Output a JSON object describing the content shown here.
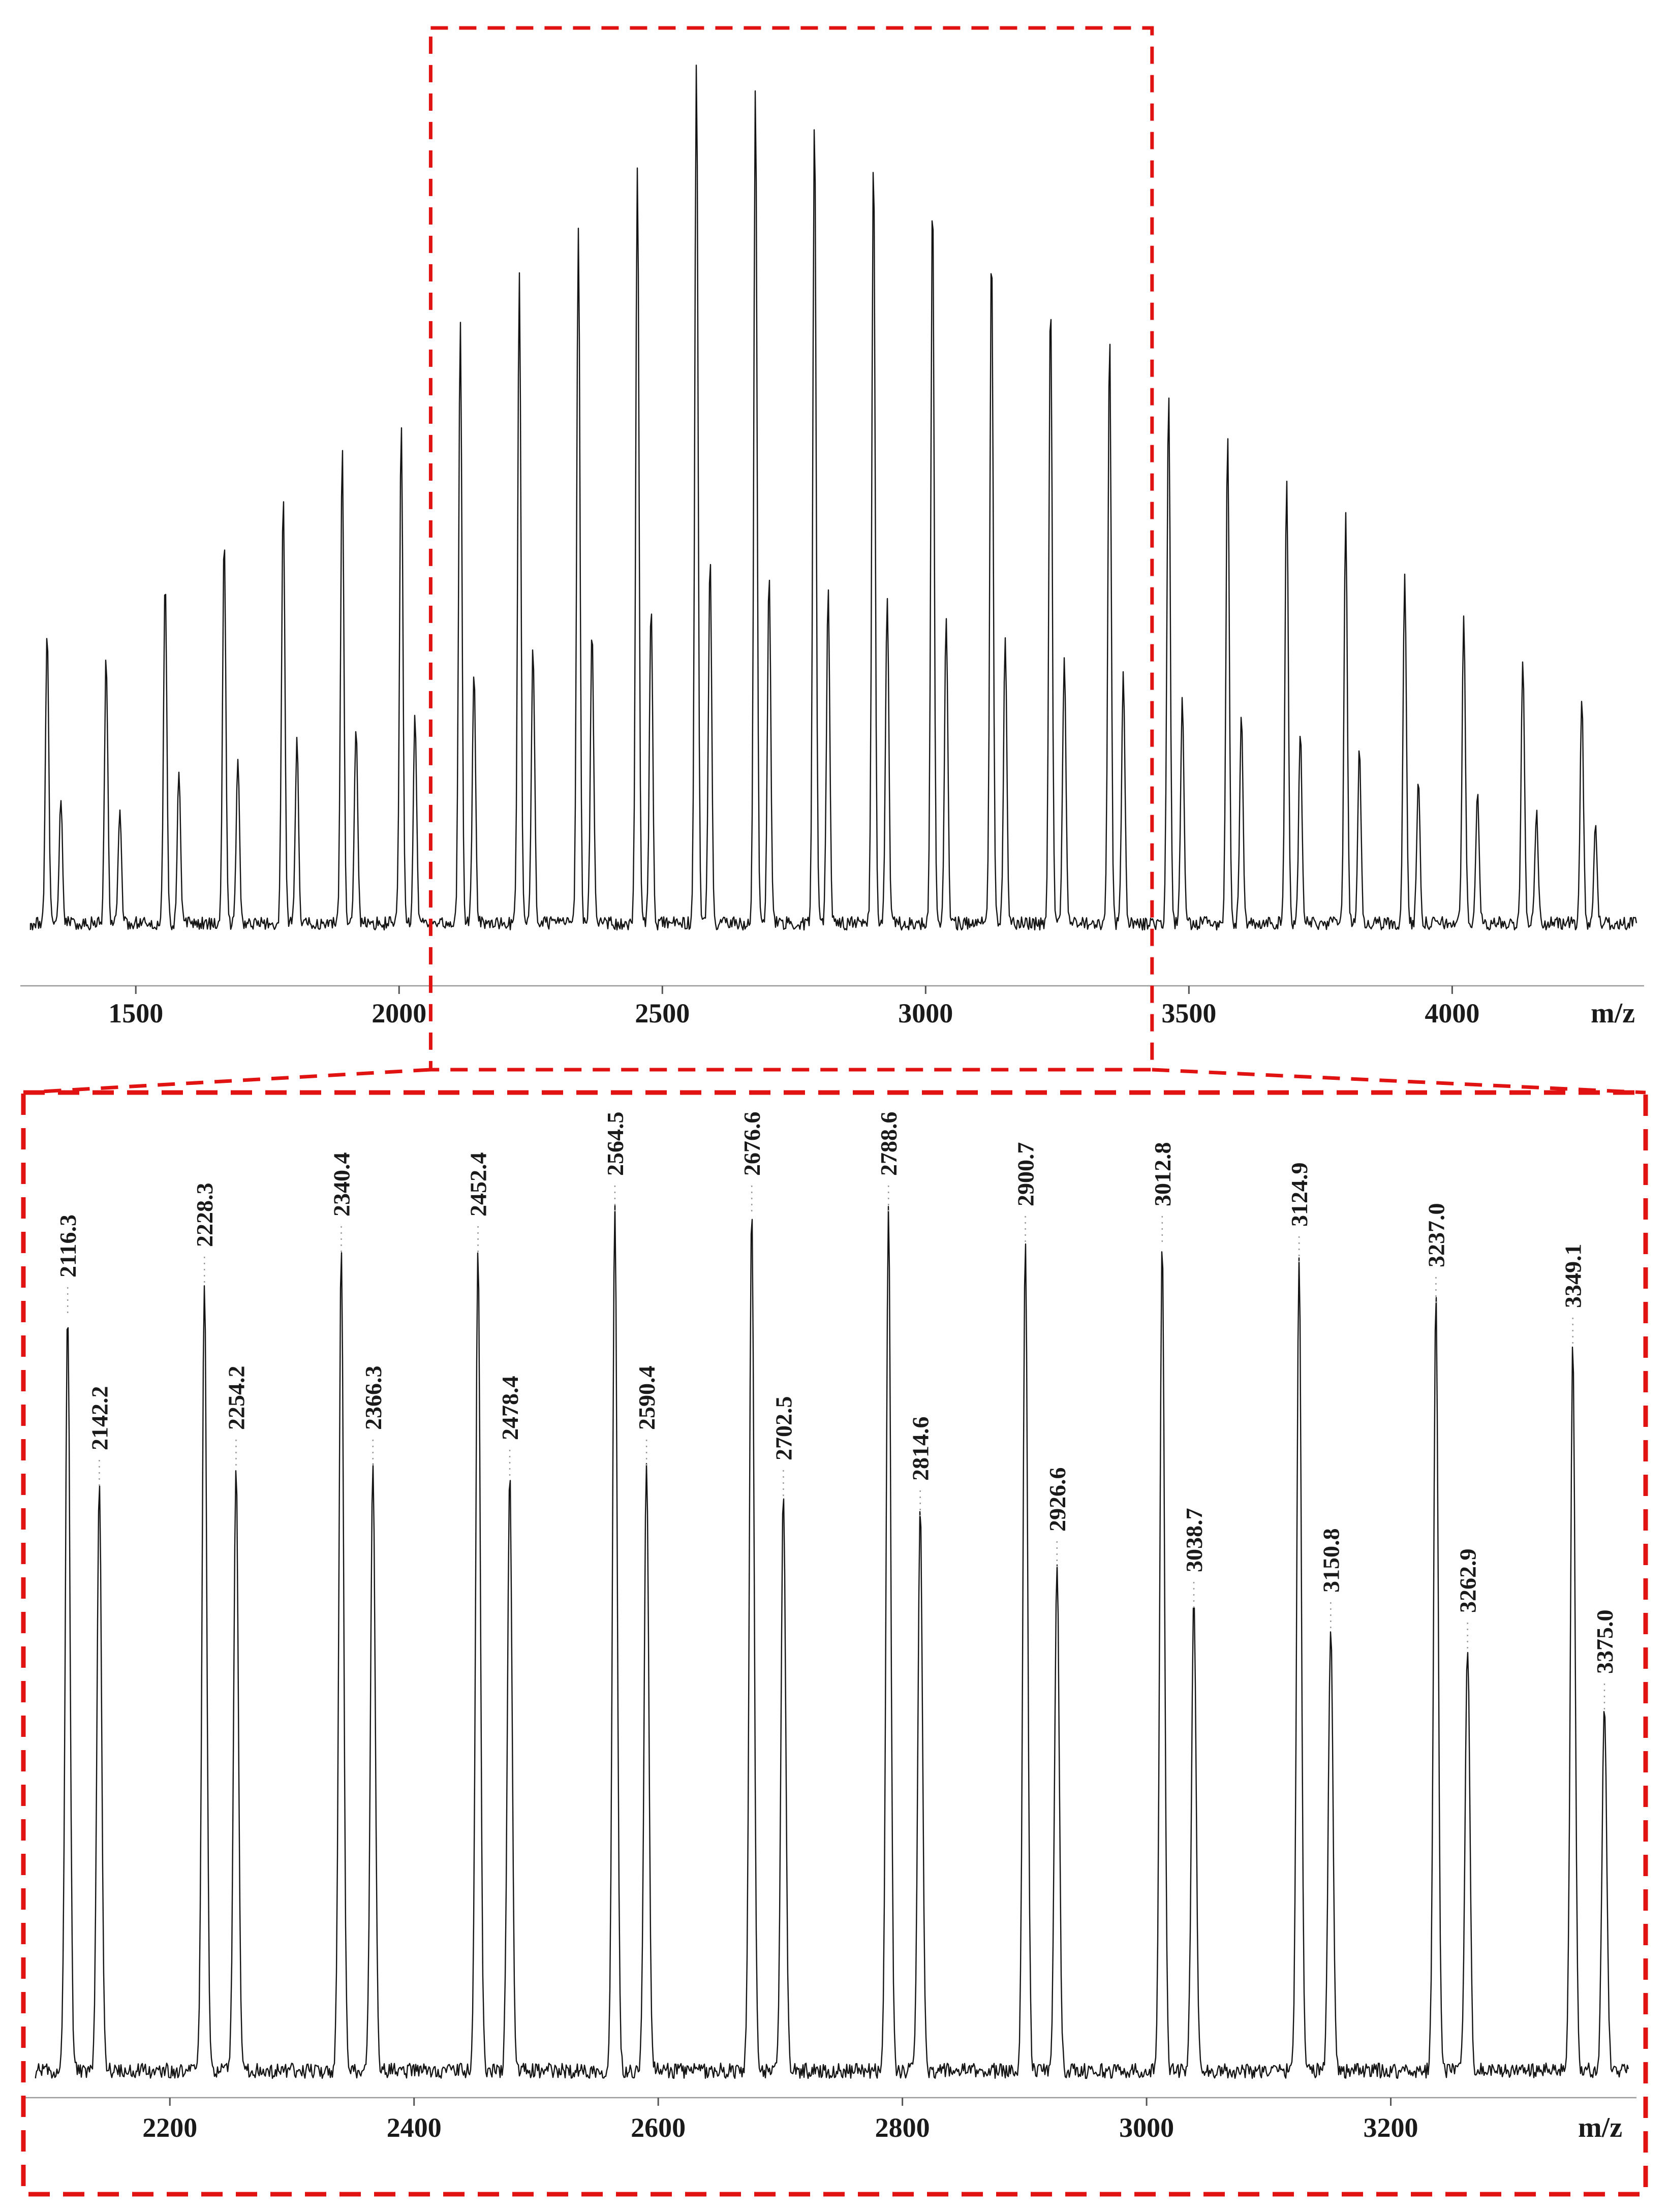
{
  "figure": {
    "background": "#ffffff",
    "accent_red": "#e01212",
    "trace_color": "#141414",
    "axis_color": "#999999"
  },
  "chart_data": [
    {
      "type": "line",
      "title": "Full-range mass spectrum (polymer distribution)",
      "xlabel": "m/z",
      "x_range": [
        1300,
        4350
      ],
      "x_ticks": [
        1500,
        2000,
        2500,
        3000,
        3500,
        4000
      ],
      "grid": false,
      "legend": "none",
      "zoom_box_range": [
        2060,
        3430
      ],
      "peaks": [
        {
          "mz": 1331.6,
          "i": 0.34
        },
        {
          "mz": 1357.6,
          "i": 0.14
        },
        {
          "mz": 1443.7,
          "i": 0.31
        },
        {
          "mz": 1469.7,
          "i": 0.13
        },
        {
          "mz": 1555.8,
          "i": 0.4
        },
        {
          "mz": 1581.8,
          "i": 0.17
        },
        {
          "mz": 1667.9,
          "i": 0.45
        },
        {
          "mz": 1693.9,
          "i": 0.19
        },
        {
          "mz": 1780.0,
          "i": 0.5
        },
        {
          "mz": 1806.0,
          "i": 0.21
        },
        {
          "mz": 1892.1,
          "i": 0.55
        },
        {
          "mz": 1918.1,
          "i": 0.23
        },
        {
          "mz": 2004.2,
          "i": 0.58
        },
        {
          "mz": 2030.2,
          "i": 0.24
        },
        {
          "mz": 2116.3,
          "i": 0.7
        },
        {
          "mz": 2142.3,
          "i": 0.29
        },
        {
          "mz": 2228.4,
          "i": 0.75
        },
        {
          "mz": 2254.4,
          "i": 0.32
        },
        {
          "mz": 2340.5,
          "i": 0.81
        },
        {
          "mz": 2366.5,
          "i": 0.34
        },
        {
          "mz": 2452.6,
          "i": 0.88
        },
        {
          "mz": 2478.6,
          "i": 0.37
        },
        {
          "mz": 2564.7,
          "i": 1.0
        },
        {
          "mz": 2590.7,
          "i": 0.42
        },
        {
          "mz": 2676.8,
          "i": 0.97
        },
        {
          "mz": 2702.8,
          "i": 0.41
        },
        {
          "mz": 2788.9,
          "i": 0.94
        },
        {
          "mz": 2814.9,
          "i": 0.39
        },
        {
          "mz": 2901.0,
          "i": 0.9
        },
        {
          "mz": 2927.0,
          "i": 0.38
        },
        {
          "mz": 3013.1,
          "i": 0.85
        },
        {
          "mz": 3039.1,
          "i": 0.36
        },
        {
          "mz": 3125.2,
          "i": 0.79
        },
        {
          "mz": 3151.2,
          "i": 0.33
        },
        {
          "mz": 3237.3,
          "i": 0.73
        },
        {
          "mz": 3263.3,
          "i": 0.31
        },
        {
          "mz": 3349.4,
          "i": 0.68
        },
        {
          "mz": 3375.4,
          "i": 0.29
        },
        {
          "mz": 3461.5,
          "i": 0.62
        },
        {
          "mz": 3487.5,
          "i": 0.26
        },
        {
          "mz": 3573.6,
          "i": 0.57
        },
        {
          "mz": 3599.6,
          "i": 0.24
        },
        {
          "mz": 3685.7,
          "i": 0.52
        },
        {
          "mz": 3711.7,
          "i": 0.22
        },
        {
          "mz": 3797.8,
          "i": 0.47
        },
        {
          "mz": 3823.8,
          "i": 0.2
        },
        {
          "mz": 3909.9,
          "i": 0.41
        },
        {
          "mz": 3935.9,
          "i": 0.17
        },
        {
          "mz": 4022.0,
          "i": 0.36
        },
        {
          "mz": 4048.0,
          "i": 0.15
        },
        {
          "mz": 4134.1,
          "i": 0.31
        },
        {
          "mz": 4160.1,
          "i": 0.13
        },
        {
          "mz": 4246.2,
          "i": 0.26
        },
        {
          "mz": 4272.2,
          "i": 0.11
        }
      ]
    },
    {
      "type": "line",
      "title": "Zoomed region of spectrum (labeled peaks)",
      "xlabel": "m/z",
      "x_range": [
        2090,
        3395
      ],
      "x_ticks": [
        2200,
        2400,
        2600,
        2800,
        3000,
        3200
      ],
      "grid": false,
      "legend": "none",
      "peaks": [
        {
          "mz": 2116.3,
          "i": 0.75,
          "label": "2116.3"
        },
        {
          "mz": 2142.2,
          "i": 0.58,
          "label": "2142.2"
        },
        {
          "mz": 2228.3,
          "i": 0.78,
          "label": "2228.3"
        },
        {
          "mz": 2254.2,
          "i": 0.6,
          "label": "2254.2"
        },
        {
          "mz": 2340.4,
          "i": 0.81,
          "label": "2340.4"
        },
        {
          "mz": 2366.3,
          "i": 0.6,
          "label": "2366.3"
        },
        {
          "mz": 2452.4,
          "i": 0.81,
          "label": "2452.4"
        },
        {
          "mz": 2478.4,
          "i": 0.59,
          "label": "2478.4"
        },
        {
          "mz": 2564.5,
          "i": 0.85,
          "label": "2564.5"
        },
        {
          "mz": 2590.4,
          "i": 0.6,
          "label": "2590.4"
        },
        {
          "mz": 2676.6,
          "i": 0.85,
          "label": "2676.6"
        },
        {
          "mz": 2702.5,
          "i": 0.57,
          "label": "2702.5"
        },
        {
          "mz": 2788.6,
          "i": 0.85,
          "label": "2788.6"
        },
        {
          "mz": 2814.6,
          "i": 0.55,
          "label": "2814.6"
        },
        {
          "mz": 2900.7,
          "i": 0.82,
          "label": "2900.7"
        },
        {
          "mz": 2926.6,
          "i": 0.5,
          "label": "2926.6"
        },
        {
          "mz": 3012.8,
          "i": 0.82,
          "label": "3012.8"
        },
        {
          "mz": 3038.7,
          "i": 0.46,
          "label": "3038.7"
        },
        {
          "mz": 3124.9,
          "i": 0.8,
          "label": "3124.9"
        },
        {
          "mz": 3150.8,
          "i": 0.44,
          "label": "3150.8"
        },
        {
          "mz": 3237.0,
          "i": 0.76,
          "label": "3237.0"
        },
        {
          "mz": 3262.9,
          "i": 0.42,
          "label": "3262.9"
        },
        {
          "mz": 3349.1,
          "i": 0.72,
          "label": "3349.1"
        },
        {
          "mz": 3375.0,
          "i": 0.36,
          "label": "3375.0"
        }
      ]
    }
  ]
}
